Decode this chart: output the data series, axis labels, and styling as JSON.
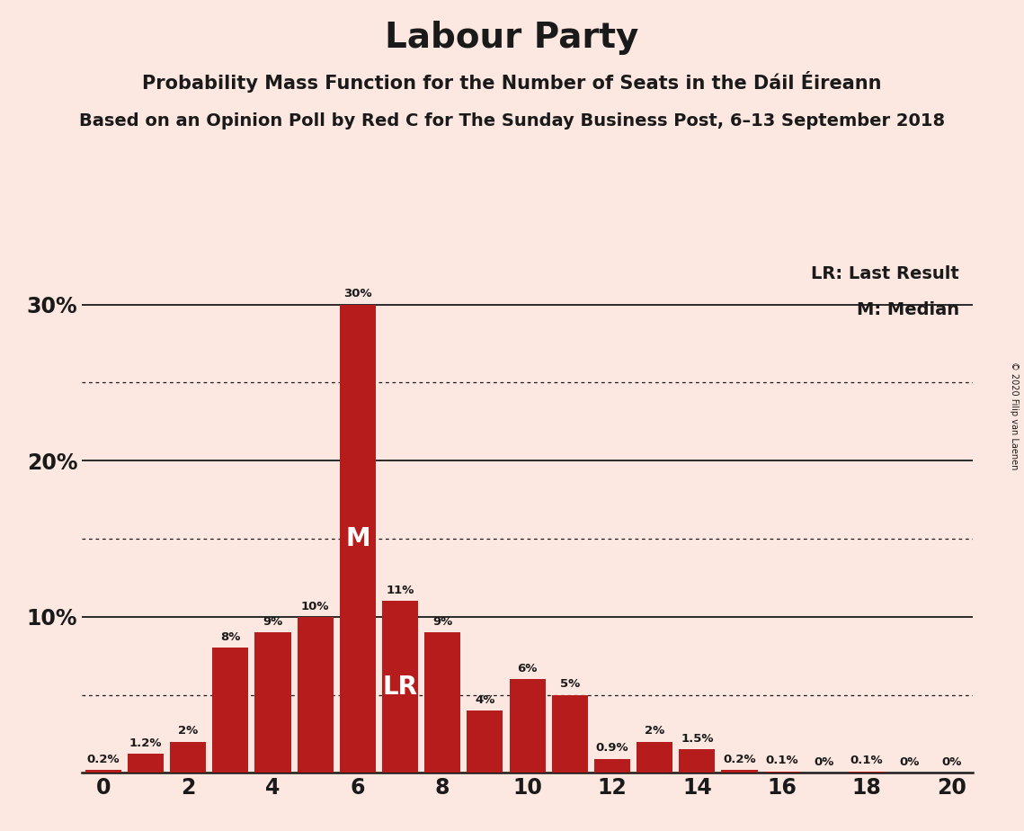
{
  "title": "Labour Party",
  "subtitle1": "Probability Mass Function for the Number of Seats in the Dáil Éireann",
  "subtitle2": "Based on an Opinion Poll by Red C for The Sunday Business Post, 6–13 September 2018",
  "copyright": "© 2020 Filip van Laenen",
  "seats": [
    0,
    1,
    2,
    3,
    4,
    5,
    6,
    7,
    8,
    9,
    10,
    11,
    12,
    13,
    14,
    15,
    16,
    17,
    18,
    19,
    20
  ],
  "probabilities": [
    0.2,
    1.2,
    2.0,
    8.0,
    9.0,
    10.0,
    30.0,
    11.0,
    9.0,
    4.0,
    6.0,
    5.0,
    0.9,
    2.0,
    1.5,
    0.2,
    0.1,
    0.0,
    0.1,
    0.0,
    0.0
  ],
  "bar_color": "#b71c1c",
  "background_color": "#fce8e0",
  "text_color": "#1a1a1a",
  "lr_seat": 7,
  "median_seat": 6,
  "dotted_lines": [
    5,
    15,
    25
  ],
  "solid_lines": [
    10,
    20,
    30
  ],
  "xlim": [
    -0.5,
    20.5
  ],
  "ylim": [
    0,
    33
  ],
  "bar_label_fontsize": 9.5,
  "ytick_fontsize": 17,
  "xtick_fontsize": 17,
  "legend_fontsize": 14,
  "title_fontsize": 28,
  "subtitle1_fontsize": 15,
  "subtitle2_fontsize": 14
}
